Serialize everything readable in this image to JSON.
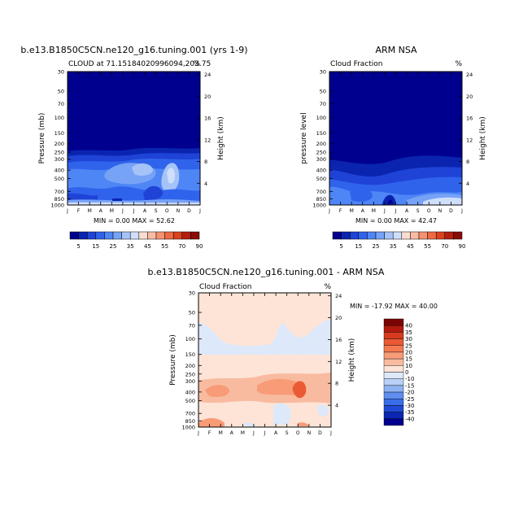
{
  "chart_data": [
    {
      "type": "heatmap",
      "title": "b.e13.B1850C5CN.ne120_g16.tuning.001 (yrs 1-9)",
      "subtitle_left": "CLOUD at 71.15184020996094,203.75",
      "subtitle_right": "%",
      "ylabel": "Pressure (mb)",
      "ylabel_right": "Height (km)",
      "x_ticks": [
        "J",
        "F",
        "M",
        "A",
        "M",
        "J",
        "J",
        "A",
        "S",
        "O",
        "N",
        "D",
        "J"
      ],
      "y_ticks": [
        "30",
        "50",
        "70",
        "100",
        "150",
        "200",
        "250",
        "300",
        "400",
        "500",
        "700",
        "850",
        "1000"
      ],
      "y_ticks_right": [
        "24",
        "20",
        "16",
        "12",
        "8",
        "4"
      ],
      "stats": "MIN =   0.00 MAX =  52.62",
      "min": 0.0,
      "max": 52.62
    },
    {
      "type": "heatmap",
      "title": "ARM NSA",
      "subtitle_left": "Cloud Fraction",
      "subtitle_right": "%",
      "ylabel": "pressure level",
      "ylabel_right": "Height (km)",
      "x_ticks": [
        "J",
        "F",
        "M",
        "A",
        "M",
        "J",
        "J",
        "A",
        "S",
        "O",
        "N",
        "D",
        "J"
      ],
      "y_ticks": [
        "30",
        "50",
        "70",
        "100",
        "150",
        "200",
        "250",
        "300",
        "400",
        "500",
        "700",
        "850",
        "1000"
      ],
      "y_ticks_right": [
        "24",
        "20",
        "16",
        "12",
        "8",
        "4"
      ],
      "stats": "MIN =   0.00 MAX =  42.47",
      "min": 0.0,
      "max": 42.47
    },
    {
      "type": "heatmap",
      "title": "b.e13.B1850C5CN.ne120_g16.tuning.001 - ARM NSA",
      "subtitle_left": "Cloud Fraction",
      "subtitle_right": "%",
      "ylabel": "Pressure (mb)",
      "ylabel_right": "Height (km)",
      "x_ticks": [
        "J",
        "F",
        "M",
        "A",
        "M",
        "J",
        "J",
        "A",
        "S",
        "O",
        "N",
        "D",
        "J"
      ],
      "y_ticks": [
        "30",
        "50",
        "70",
        "100",
        "150",
        "200",
        "250",
        "300",
        "400",
        "500",
        "700",
        "850",
        "1000"
      ],
      "y_ticks_right": [
        "24",
        "20",
        "16",
        "12",
        "8",
        "4"
      ],
      "stats": "MIN = -17.92 MAX =  40.00",
      "min": -17.92,
      "max": 40.0
    }
  ],
  "colorbar_top": {
    "labels": [
      "5",
      "15",
      "25",
      "35",
      "45",
      "55",
      "70",
      "90"
    ],
    "colors": [
      "#00008f",
      "#0a24b0",
      "#1f43d6",
      "#3063ec",
      "#4f86f6",
      "#77a3f7",
      "#a6c3f8",
      "#cfdefb",
      "#f8dccf",
      "#f8bca4",
      "#f5936f",
      "#ee6a44",
      "#d9421e",
      "#b41f10",
      "#8b0b08"
    ]
  },
  "colorbar_diff": {
    "labels": [
      "40",
      "35",
      "30",
      "25",
      "20",
      "15",
      "10",
      "0",
      "-10",
      "-15",
      "-20",
      "-25",
      "-30",
      "-35",
      "-40"
    ],
    "colors": [
      "#7a0403",
      "#b21a0e",
      "#d63b1e",
      "#ea5a34",
      "#f47a52",
      "#f89b77",
      "#f8bba0",
      "#fde4d6",
      "#dde9fb",
      "#b9d0f7",
      "#8fb2f2",
      "#5f8ef0",
      "#3a6de8",
      "#2049d6",
      "#0b27b3",
      "#00008c"
    ]
  }
}
